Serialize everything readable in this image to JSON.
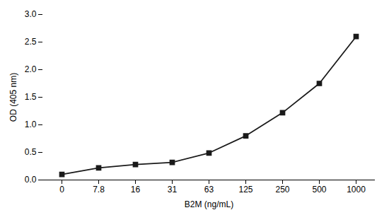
{
  "chart_data": {
    "type": "line",
    "categories": [
      "0",
      "7.8",
      "16",
      "31",
      "63",
      "125",
      "250",
      "500",
      "1000"
    ],
    "values": [
      0.1,
      0.22,
      0.28,
      0.32,
      0.49,
      0.8,
      1.22,
      1.75,
      2.6
    ],
    "xlabel": "B2M (ng/mL)",
    "ylabel": "OD (405 nm)",
    "ylim": [
      0.0,
      3.0
    ],
    "yticks": [
      {
        "value": 0,
        "label": "0.0"
      },
      0.5,
      {
        "value": 1,
        "label": "1.0"
      },
      1.5,
      {
        "value": 2,
        "label": "2.0"
      },
      2.5,
      {
        "value": 3,
        "label": "3.0"
      }
    ],
    "color": "#1a1a1a",
    "marker": "square",
    "grid": false
  }
}
